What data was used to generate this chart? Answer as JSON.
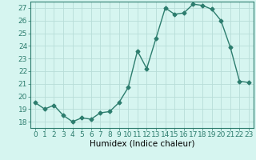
{
  "title": "",
  "xlabel": "Humidex (Indice chaleur)",
  "x": [
    0,
    1,
    2,
    3,
    4,
    5,
    6,
    7,
    8,
    9,
    10,
    11,
    12,
    13,
    14,
    15,
    16,
    17,
    18,
    19,
    20,
    21,
    22,
    23
  ],
  "y": [
    19.5,
    19.0,
    19.3,
    18.5,
    18.0,
    18.3,
    18.2,
    18.7,
    18.8,
    19.5,
    20.7,
    23.6,
    22.2,
    24.6,
    27.0,
    26.5,
    26.6,
    27.3,
    27.2,
    26.9,
    26.0,
    23.9,
    21.2,
    21.1
  ],
  "line_color": "#2d7d6e",
  "marker": "D",
  "marker_size": 2.5,
  "bg_color": "#d6f5f0",
  "grid_color": "#b8ddd8",
  "ylim": [
    17.5,
    27.5
  ],
  "yticks": [
    18,
    19,
    20,
    21,
    22,
    23,
    24,
    25,
    26,
    27
  ],
  "xlim": [
    -0.5,
    23.5
  ],
  "tick_label_fontsize": 6.5,
  "xlabel_fontsize": 7.5,
  "line_width": 1.0
}
